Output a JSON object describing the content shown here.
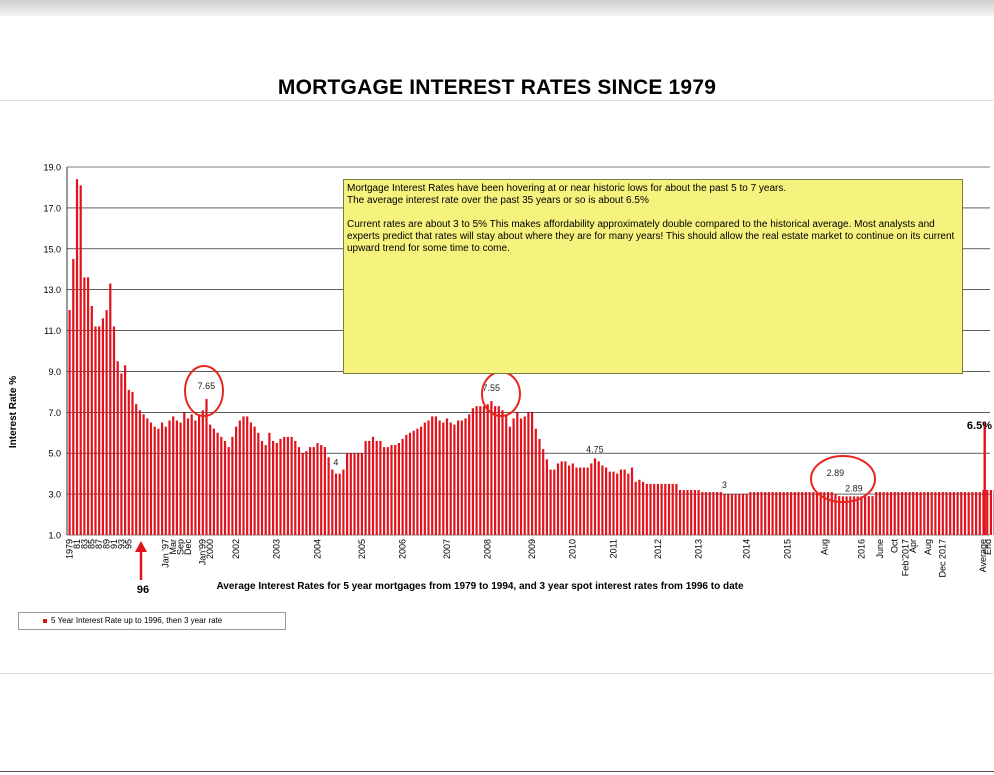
{
  "page": {
    "title": "MORTGAGE INTEREST RATES SINCE 1979"
  },
  "note": {
    "paragraph1": "Mortgage Interest Rates have been hovering at or near historic lows for about the past  5 to 7 years.",
    "paragraph2": "The average interest rate over the past 35 years or so is about 6.5%",
    "paragraph3": "Current rates are about 3 to 5%  This makes affordability approximately double compared to the  historical average.  Most analysts and experts predict that rates will stay about where they are for many years!  This should allow the real estate market to continue on its current upward trend for some time to come."
  },
  "annotations": {
    "arrow_label": "96",
    "average_label": "6.5%"
  },
  "legend": {
    "label": "5 Year Interest Rate up to 1996, then 3 year rate"
  },
  "colors": {
    "bar": "#e0121b",
    "circle": "#e8261f",
    "note_bg": "#f6f27e"
  },
  "chart_data": {
    "type": "bar",
    "title": "MORTGAGE INTEREST RATES SINCE 1979",
    "xlabel": "Average Interest Rates for 5 year mortgages from 1979 to 1994, and 3 year spot interest rates from 1996 to date",
    "ylabel": "Interest Rate %",
    "ylim": [
      1.0,
      19.0
    ],
    "yticks": [
      "19.0",
      "17.0",
      "15.0",
      "13.0",
      "11.0",
      "9.0",
      "7.0",
      "5.0",
      "3.0",
      "1.0"
    ],
    "grid": true,
    "legend_position": "bottom-left",
    "series": [
      {
        "name": "5 Year Interest Rate up to 1996, then 3 year rate",
        "values": [
          12.0,
          14.5,
          18.4,
          18.1,
          13.6,
          13.6,
          12.2,
          11.2,
          11.2,
          11.6,
          12.0,
          13.3,
          11.2,
          9.5,
          8.9,
          9.3,
          8.1,
          8.0,
          7.4,
          7.1,
          6.9,
          6.7,
          6.5,
          6.3,
          6.2,
          6.5,
          6.3,
          6.6,
          6.8,
          6.6,
          6.5,
          7.0,
          6.7,
          6.9,
          6.6,
          6.9,
          7.1,
          7.65,
          6.4,
          6.2,
          6.0,
          5.8,
          5.6,
          5.3,
          5.8,
          6.3,
          6.6,
          6.8,
          6.8,
          6.5,
          6.3,
          6.0,
          5.6,
          5.4,
          6.0,
          5.6,
          5.5,
          5.7,
          5.8,
          5.8,
          5.8,
          5.6,
          5.3,
          5.0,
          5.1,
          5.3,
          5.3,
          5.5,
          5.4,
          5.3,
          4.8,
          4.2,
          4.0,
          4.0,
          4.2,
          5.0,
          5.0,
          5.0,
          5.0,
          5.0,
          5.6,
          5.6,
          5.8,
          5.6,
          5.6,
          5.3,
          5.3,
          5.4,
          5.4,
          5.5,
          5.7,
          5.9,
          6.0,
          6.1,
          6.2,
          6.3,
          6.5,
          6.6,
          6.8,
          6.8,
          6.6,
          6.5,
          6.7,
          6.5,
          6.4,
          6.6,
          6.6,
          6.7,
          6.9,
          7.2,
          7.3,
          7.3,
          7.3,
          7.4,
          7.55,
          7.3,
          7.3,
          7.1,
          6.9,
          6.3,
          6.7,
          7.0,
          6.7,
          6.8,
          7.0,
          7.0,
          6.2,
          5.7,
          5.2,
          4.7,
          4.2,
          4.2,
          4.5,
          4.6,
          4.6,
          4.4,
          4.5,
          4.3,
          4.3,
          4.3,
          4.3,
          4.5,
          4.75,
          4.6,
          4.4,
          4.3,
          4.1,
          4.1,
          4.0,
          4.2,
          4.2,
          4.0,
          4.3,
          3.6,
          3.7,
          3.6,
          3.5,
          3.5,
          3.5,
          3.5,
          3.5,
          3.5,
          3.5,
          3.5,
          3.5,
          3.2,
          3.2,
          3.2,
          3.2,
          3.2,
          3.2,
          3.1,
          3.1,
          3.1,
          3.1,
          3.1,
          3.1,
          3.0,
          3.0,
          3.0,
          3.0,
          3.0,
          3.0,
          3.0,
          3.1,
          3.1,
          3.1,
          3.1,
          3.1,
          3.1,
          3.1,
          3.1,
          3.1,
          3.1,
          3.1,
          3.1,
          3.1,
          3.1,
          3.1,
          3.1,
          3.1,
          3.1,
          3.1,
          3.1,
          3.1,
          3.1,
          3.1,
          3.0,
          2.9,
          2.89,
          2.89,
          2.89,
          2.89,
          2.89,
          2.89,
          2.9,
          2.9,
          2.9,
          3.1,
          3.1,
          3.1,
          3.1,
          3.1,
          3.1,
          3.1,
          3.1,
          3.1,
          3.1,
          3.1,
          3.1,
          3.1,
          3.1,
          3.1,
          3.1,
          3.1,
          3.1,
          3.1,
          3.1,
          3.1,
          3.1,
          3.1,
          3.1,
          3.1,
          3.1,
          3.1,
          3.1,
          3.1,
          3.2,
          3.2,
          3.2,
          3.2
        ]
      }
    ],
    "average": {
      "label": "Average",
      "value": 6.5
    },
    "data_labels": [
      {
        "text": "7.65",
        "index": 37
      },
      {
        "text": "4",
        "index": 72
      },
      {
        "text": "7.55",
        "index": 114
      },
      {
        "text": "4.75",
        "index": 142
      },
      {
        "text": "3",
        "index": 177
      },
      {
        "text": "2.89",
        "index": 207
      },
      {
        "text": "2.89",
        "index": 212
      }
    ],
    "circled_labels": [
      "7.65",
      "7.55",
      "2.89"
    ],
    "x_tick_labels": [
      {
        "text": "1979",
        "index": 0
      },
      {
        "text": "81",
        "index": 2
      },
      {
        "text": "83",
        "index": 4
      },
      {
        "text": "85",
        "index": 6
      },
      {
        "text": "87",
        "index": 8
      },
      {
        "text": "89",
        "index": 10
      },
      {
        "text": "91",
        "index": 12
      },
      {
        "text": "93",
        "index": 14
      },
      {
        "text": "95",
        "index": 16
      },
      {
        "text": "Jan '97",
        "index": 26
      },
      {
        "text": "Mar",
        "index": 28
      },
      {
        "text": "Sep",
        "index": 30
      },
      {
        "text": "Dec",
        "index": 32
      },
      {
        "text": "Jan'99",
        "index": 36
      },
      {
        "text": "2000",
        "index": 38
      },
      {
        "text": "2002",
        "index": 45
      },
      {
        "text": "2003",
        "index": 56
      },
      {
        "text": "2004",
        "index": 67
      },
      {
        "text": "2005",
        "index": 79
      },
      {
        "text": "2006",
        "index": 90
      },
      {
        "text": "2007",
        "index": 102
      },
      {
        "text": "2008",
        "index": 113
      },
      {
        "text": "2009",
        "index": 125
      },
      {
        "text": "2010",
        "index": 136
      },
      {
        "text": "2011",
        "index": 147
      },
      {
        "text": "2012",
        "index": 159
      },
      {
        "text": "2013",
        "index": 170
      },
      {
        "text": "2014",
        "index": 183
      },
      {
        "text": "2015",
        "index": 194
      },
      {
        "text": "Aug",
        "index": 204
      },
      {
        "text": "2016",
        "index": 214
      },
      {
        "text": "June",
        "index": 219
      },
      {
        "text": "Oct",
        "index": 223
      },
      {
        "text": "Feb'2017",
        "index": 226
      },
      {
        "text": "Apr",
        "index": 228
      },
      {
        "text": "Aug",
        "index": 232
      },
      {
        "text": "Dec 2017",
        "index": 236
      },
      {
        "text": "Average",
        "index": 240
      },
      {
        "text": "End",
        "index": 242
      }
    ]
  }
}
